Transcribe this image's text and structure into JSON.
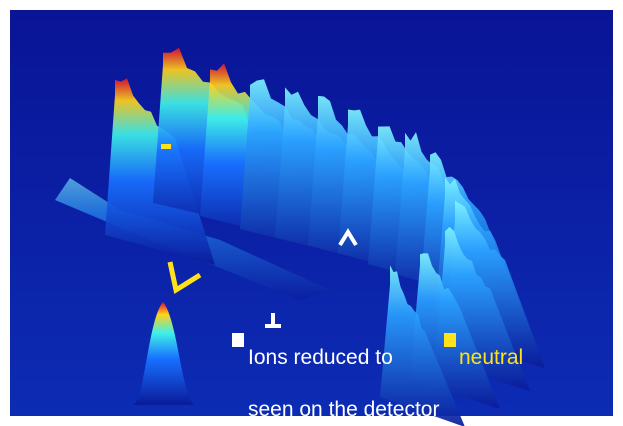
{
  "annotations": {
    "line1": "Ions reduced to",
    "highlight": "neutral",
    "line2": "seen on the detector"
  }
}
